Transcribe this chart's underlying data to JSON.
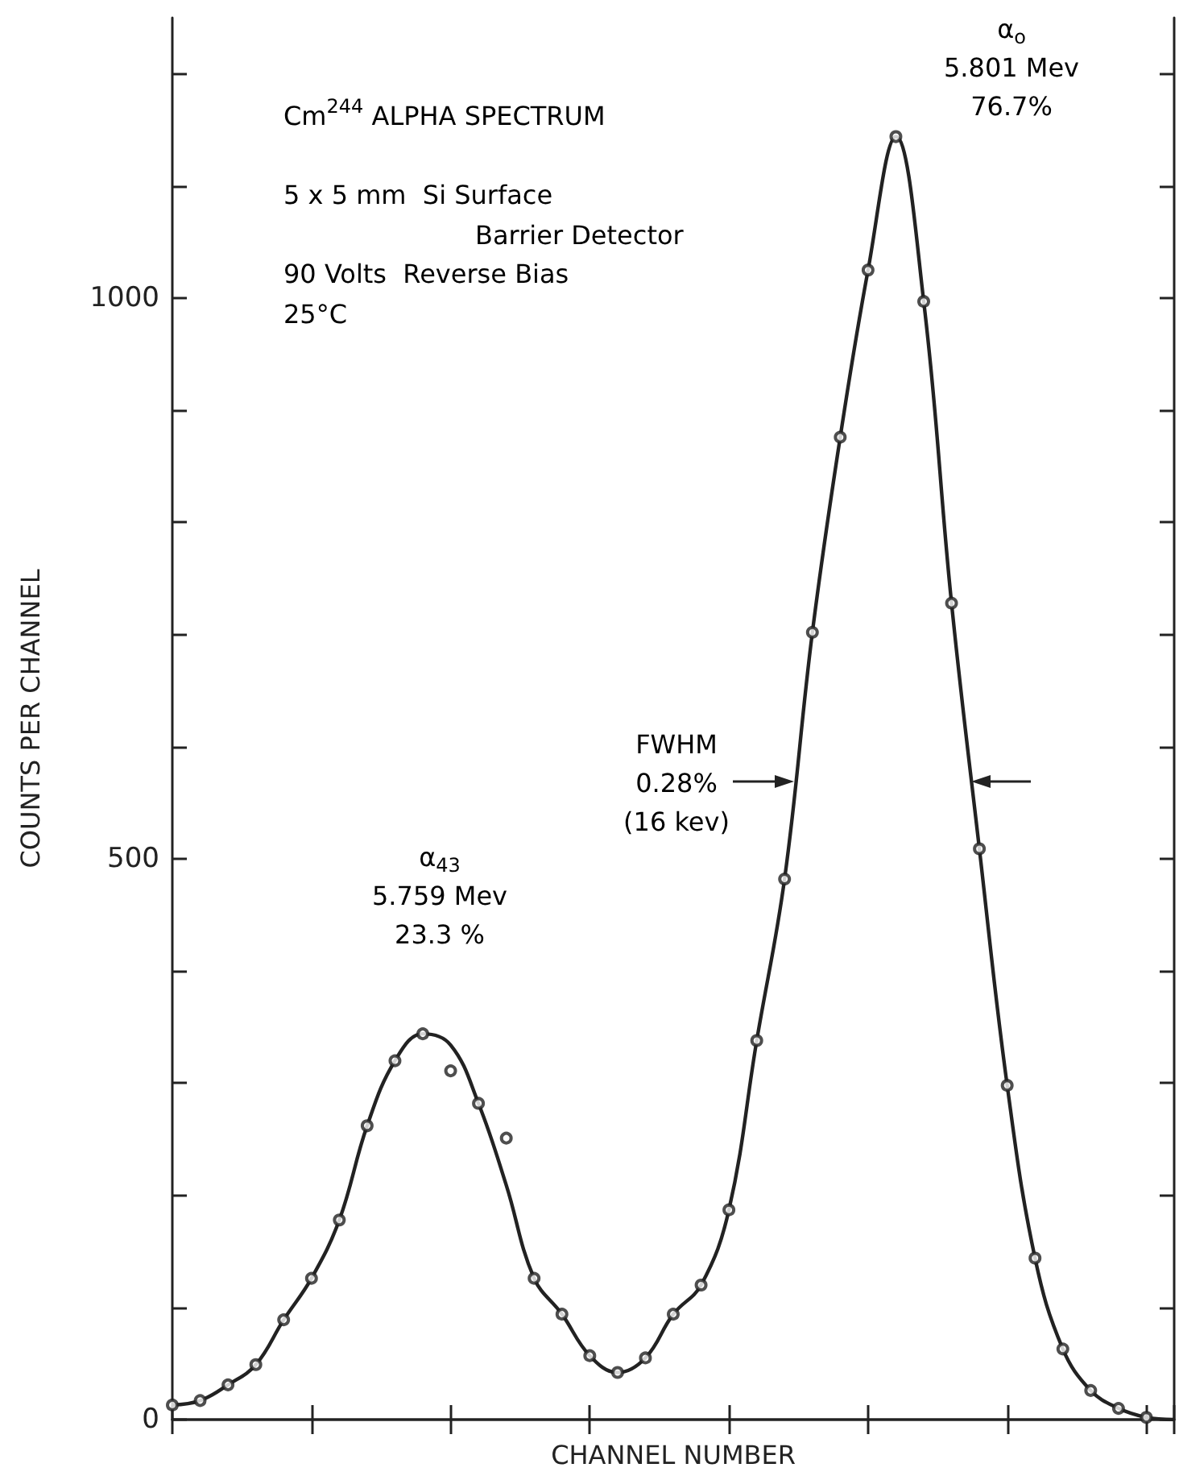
{
  "chart_data": {
    "type": "line",
    "title": "Cm$^{244}$ ALPHA SPECTRUM",
    "xlabel": "CHANNEL NUMBER",
    "ylabel": "COUNTS PER CHANNEL",
    "annotations": [
      "5 x 5 mm  Si Surface",
      "Barrier Detector",
      "90 Volts  Reverse Bias",
      "25°C",
      "α$_{43}$\n5.759 Mev\n23.3 %",
      "α$_{o}$\n5.801 Mev\n76.7%",
      "FWHM\n0.28%\n(16 kev)"
    ],
    "categories": [
      null,
      null,
      null,
      null,
      null,
      null,
      null,
      null,
      null,
      null,
      null,
      null,
      null,
      null,
      null,
      null,
      null,
      null,
      null,
      null,
      null,
      null,
      null,
      null,
      null,
      null,
      null,
      null,
      null,
      null,
      null,
      null,
      null,
      null,
      null,
      null,
      null
    ],
    "series": [
      {
        "color": "#222222",
        "marker": "none",
        "line_style": "solid",
        "values": [
          13,
          17,
          31,
          49,
          89,
          126,
          178,
          262,
          320,
          344,
          334,
          282,
          209,
          126,
          94,
          57,
          42,
          55,
          94,
          120,
          187,
          338,
          482,
          702,
          876,
          1025,
          1144,
          997,
          728,
          509,
          298,
          144,
          63,
          26,
          10,
          2,
          0
        ]
      },
      {
        "type": "scatter",
        "color": "#222222",
        "marker": "circle",
        "values": [
          13,
          17,
          31,
          49,
          89,
          126,
          178,
          262,
          320,
          344,
          311,
          282,
          251,
          126,
          94,
          57,
          42,
          55,
          94,
          120,
          187,
          338,
          482,
          702,
          876,
          1025,
          1144,
          997,
          728,
          509,
          298,
          144,
          63,
          26,
          10,
          2,
          null
        ]
      }
    ],
    "ylim": [
      0,
      1250
    ],
    "yticks": [
      0,
      {
        "value": 100,
        "label": null
      },
      {
        "value": 200,
        "label": null
      },
      {
        "value": 300,
        "label": null
      },
      {
        "value": 400,
        "label": null
      },
      500,
      {
        "value": 600,
        "label": null
      },
      {
        "value": 700,
        "label": null
      },
      {
        "value": 800,
        "label": null
      },
      {
        "value": 900,
        "label": null
      },
      1000,
      {
        "value": 1100,
        "label": null
      },
      {
        "value": 1200,
        "label": null
      }
    ],
    "grid": false
  }
}
